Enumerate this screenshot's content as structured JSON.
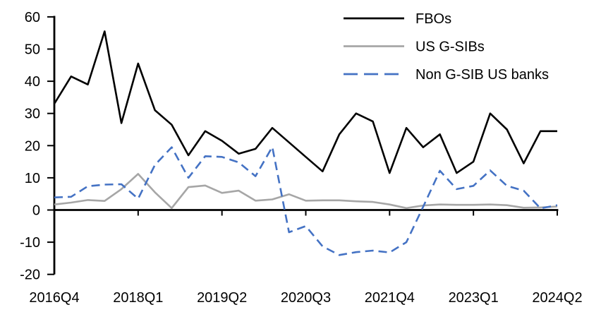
{
  "chart_data": {
    "type": "line",
    "title": "",
    "xlabel": "",
    "ylabel": "",
    "background": "#ffffff",
    "grid": false,
    "legend_position": "top-right",
    "ylim": [
      -20,
      60
    ],
    "y_ticks": [
      60,
      50,
      40,
      30,
      20,
      10,
      0,
      -10,
      -20
    ],
    "x_categories": [
      "2016Q4",
      "2017Q1",
      "2017Q2",
      "2017Q3",
      "2017Q4",
      "2018Q1",
      "2018Q2",
      "2018Q3",
      "2018Q4",
      "2019Q1",
      "2019Q2",
      "2019Q3",
      "2019Q4",
      "2020Q1",
      "2020Q2",
      "2020Q3",
      "2020Q4",
      "2021Q1",
      "2021Q2",
      "2021Q3",
      "2021Q4",
      "2022Q1",
      "2022Q2",
      "2022Q3",
      "2022Q4",
      "2023Q1",
      "2023Q2",
      "2023Q3",
      "2023Q4",
      "2024Q1",
      "2024Q2"
    ],
    "x_tick_labels": [
      "2016Q4",
      "2018Q1",
      "2019Q2",
      "2020Q3",
      "2021Q4",
      "2023Q1",
      "2024Q2"
    ],
    "x_tick_every": 5,
    "series": [
      {
        "name": "FBOs",
        "color": "#000000",
        "style": "solid",
        "values": [
          33,
          41.5,
          39,
          55.5,
          27,
          45.5,
          31,
          26.5,
          17,
          24.5,
          21.5,
          17.5,
          19,
          25.5,
          21,
          16.5,
          12,
          23.5,
          30,
          27.5,
          11.5,
          25.5,
          19.5,
          23.5,
          11.5,
          15,
          30,
          25,
          14.5,
          24.5,
          24.5
        ]
      },
      {
        "name": "US G-SIBs",
        "color": "#a6a6a6",
        "style": "solid",
        "values": [
          1.7,
          2.3,
          3.1,
          2.8,
          6.5,
          11.2,
          5.5,
          0.6,
          7.1,
          7.6,
          5.3,
          6,
          2.9,
          3.3,
          4.9,
          2.9,
          3,
          3,
          2.7,
          2.5,
          1.7,
          0.6,
          1.4,
          1.7,
          1.6,
          1.6,
          1.7,
          1.5,
          0.7,
          0.8,
          1.1
        ]
      },
      {
        "name": "Non G-SIB US banks",
        "color": "#4472c4",
        "style": "dashed",
        "values": [
          3.9,
          4.1,
          7.4,
          7.9,
          8,
          3.5,
          14,
          19.5,
          10,
          16.7,
          16.5,
          14.8,
          10.5,
          19.6,
          -6.9,
          -5,
          -11.3,
          -14,
          -13.1,
          -12.6,
          -13.2,
          -10,
          1,
          12.2,
          6.5,
          7.5,
          12.3,
          7.5,
          6,
          0.5,
          1.5
        ]
      }
    ]
  }
}
